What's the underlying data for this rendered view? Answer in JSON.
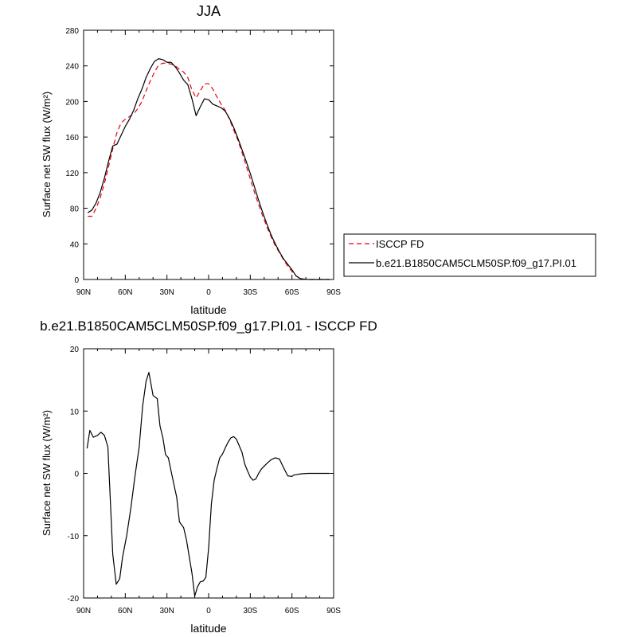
{
  "chart_data": [
    {
      "type": "line",
      "title": "JJA",
      "xlabel": "latitude",
      "ylabel": "Surface net SW flux (W/m²)",
      "xlim": [
        -90,
        90
      ],
      "ylim": [
        0,
        280
      ],
      "x_ticks": [
        {
          "value": -90,
          "label": "90N"
        },
        {
          "value": -60,
          "label": "60N"
        },
        {
          "value": -30,
          "label": "30N"
        },
        {
          "value": 0,
          "label": "0"
        },
        {
          "value": 30,
          "label": "30S"
        },
        {
          "value": 60,
          "label": "60S"
        },
        {
          "value": 90,
          "label": "90S"
        }
      ],
      "y_ticks": [
        0,
        40,
        80,
        120,
        160,
        200,
        240,
        280
      ],
      "legend": {
        "position": "right"
      },
      "series": [
        {
          "name": "ISCCP FD",
          "style": "dashed",
          "color": "#e8000b",
          "x": [
            -87,
            -84,
            -81,
            -78,
            -75,
            -72,
            -69,
            -66,
            -63,
            -60,
            -57,
            -54,
            -51,
            -48,
            -45,
            -42,
            -39,
            -36,
            -33,
            -30,
            -27,
            -24,
            -21,
            -18,
            -15,
            -12,
            -9,
            -6,
            -3,
            0,
            3,
            6,
            9,
            12,
            15,
            18,
            21,
            24,
            27,
            30,
            33,
            36,
            39,
            42,
            45,
            48,
            51,
            54,
            57,
            60,
            63,
            66,
            69,
            72,
            75,
            78,
            81,
            84,
            87
          ],
          "y": [
            71,
            71,
            80,
            92,
            108,
            127,
            147,
            165,
            176,
            180,
            183,
            186,
            192,
            200,
            212,
            223,
            233,
            241,
            243,
            243,
            242,
            240,
            236,
            233,
            227,
            213,
            204,
            212,
            220,
            220,
            214,
            205,
            197,
            190,
            180,
            168,
            157,
            143,
            128,
            113,
            98,
            84,
            71,
            59,
            48,
            38,
            30,
            22,
            15,
            9,
            4,
            1,
            0.3,
            0,
            0,
            0,
            0,
            0,
            0
          ]
        },
        {
          "name": "b.e21.B1850CAM5CLM50SP.f09_g17.PI.01",
          "style": "solid",
          "color": "#000000",
          "x": [
            -87,
            -84,
            -81,
            -78,
            -75,
            -72,
            -69,
            -66,
            -63,
            -60,
            -57,
            -54,
            -51,
            -48,
            -45,
            -42,
            -39,
            -36,
            -33,
            -30,
            -27,
            -24,
            -21,
            -18,
            -15,
            -12,
            -9,
            -6,
            -3,
            0,
            3,
            6,
            9,
            12,
            15,
            18,
            21,
            24,
            27,
            30,
            33,
            36,
            39,
            42,
            45,
            48,
            51,
            54,
            57,
            60,
            63,
            66,
            69,
            72,
            75,
            78,
            81,
            84,
            87
          ],
          "y": [
            75,
            78,
            86,
            98,
            114,
            133,
            150,
            152,
            162,
            172,
            180,
            190,
            203,
            214,
            227,
            237,
            245,
            248,
            247,
            244,
            244,
            239,
            232,
            224,
            219,
            203,
            184,
            194,
            203,
            202,
            197,
            195,
            193,
            189,
            181,
            171,
            159,
            146,
            133,
            119,
            104,
            89,
            75,
            62,
            50,
            40,
            31,
            23,
            17,
            11,
            4,
            1,
            0.3,
            0,
            0,
            0,
            0,
            0,
            0
          ]
        }
      ]
    },
    {
      "type": "line",
      "title": "b.e21.B1850CAM5CLM50SP.f09_g17.PI.01 - ISCCP FD",
      "xlabel": "latitude",
      "ylabel": "Surface net SW flux (W/m²)",
      "xlim": [
        -90,
        90
      ],
      "ylim": [
        -20,
        20
      ],
      "x_ticks": [
        {
          "value": -90,
          "label": "90N"
        },
        {
          "value": -60,
          "label": "60N"
        },
        {
          "value": -30,
          "label": "30N"
        },
        {
          "value": 0,
          "label": "0"
        },
        {
          "value": 30,
          "label": "30S"
        },
        {
          "value": 60,
          "label": "60S"
        },
        {
          "value": 90,
          "label": "90S"
        }
      ],
      "y_ticks": [
        -20,
        -10,
        0,
        10,
        20
      ],
      "series": [
        {
          "name": "",
          "style": "solid",
          "color": "#000000",
          "x": [
            -87.5,
            -85.5,
            -83,
            -80,
            -77.5,
            -75,
            -72.5,
            -69,
            -66.5,
            -64,
            -62,
            -59,
            -56,
            -53,
            -50,
            -47.5,
            -45,
            -43,
            -40,
            -37,
            -35,
            -33,
            -31,
            -29,
            -26,
            -24,
            -23,
            -21,
            -18,
            -16,
            -14,
            -12,
            -10,
            -8,
            -6,
            -4,
            -2,
            0,
            2,
            4,
            6,
            8,
            10,
            12,
            14,
            16,
            18,
            20,
            24,
            26,
            28,
            30,
            32,
            34,
            36,
            38,
            42,
            45,
            48,
            51,
            54,
            57,
            60,
            61,
            63,
            66,
            68,
            72,
            76,
            80,
            84,
            87
          ],
          "y": [
            4,
            6.9,
            5.8,
            6.1,
            6.6,
            6.1,
            4.2,
            -13,
            -17.8,
            -16.9,
            -13.5,
            -10,
            -5.6,
            -0.4,
            4.2,
            10.8,
            14.8,
            16.2,
            12.5,
            12,
            7.6,
            5.8,
            3,
            2.5,
            -0.7,
            -2.8,
            -3.8,
            -7.8,
            -8.7,
            -10.6,
            -13.3,
            -16,
            -19.7,
            -18.2,
            -17.4,
            -17.3,
            -16.7,
            -12,
            -4.9,
            -1.1,
            0.8,
            2.5,
            3.1,
            4.1,
            5,
            5.7,
            5.9,
            5.5,
            3.4,
            1.5,
            0.4,
            -0.6,
            -1.1,
            -0.9,
            0,
            0.7,
            1.6,
            2.2,
            2.5,
            2.3,
            0.9,
            -0.4,
            -0.5,
            -0.3,
            -0.2,
            -0.1,
            -0.05,
            0,
            0,
            0,
            0,
            0
          ]
        }
      ]
    }
  ]
}
